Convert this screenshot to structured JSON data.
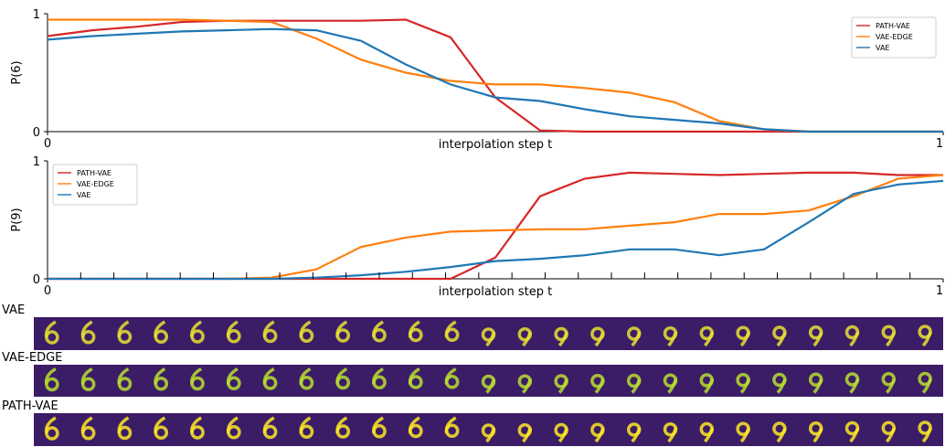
{
  "chart_data": [
    {
      "type": "line",
      "ylabel": "P(6)",
      "xlabel": "interpolation step t",
      "x": [
        0,
        0.05,
        0.1,
        0.15,
        0.2,
        0.25,
        0.3,
        0.35,
        0.4,
        0.45,
        0.5,
        0.55,
        0.6,
        0.65,
        0.7,
        0.75,
        0.8,
        0.85,
        0.9,
        0.95,
        1
      ],
      "xlim": [
        0,
        1
      ],
      "xticks": [
        0,
        1
      ],
      "ylim": [
        0,
        1
      ],
      "yticks": [
        0,
        1
      ],
      "legend": "upper right",
      "series": [
        {
          "name": "PATH-VAE",
          "color": "#d62728",
          "values": [
            0.81,
            0.86,
            0.89,
            0.93,
            0.94,
            0.94,
            0.94,
            0.94,
            0.95,
            0.8,
            0.29,
            0.01,
            0,
            0,
            0,
            0,
            0,
            0,
            0,
            0,
            0
          ]
        },
        {
          "name": "VAE-EDGE",
          "color": "#ff7f0e",
          "values": [
            0.95,
            0.95,
            0.95,
            0.95,
            0.94,
            0.93,
            0.79,
            0.61,
            0.5,
            0.43,
            0.4,
            0.4,
            0.37,
            0.33,
            0.25,
            0.09,
            0.02,
            0,
            0,
            0,
            0
          ]
        },
        {
          "name": "VAE",
          "color": "#1f77b4",
          "values": [
            0.78,
            0.81,
            0.83,
            0.85,
            0.86,
            0.87,
            0.86,
            0.77,
            0.57,
            0.4,
            0.29,
            0.26,
            0.19,
            0.13,
            0.1,
            0.07,
            0.02,
            0,
            0,
            0,
            0
          ]
        }
      ]
    },
    {
      "type": "line",
      "ylabel": "P(9)",
      "xlabel": "interpolation step t",
      "x": [
        0,
        0.05,
        0.1,
        0.15,
        0.2,
        0.25,
        0.3,
        0.35,
        0.4,
        0.45,
        0.5,
        0.55,
        0.6,
        0.65,
        0.7,
        0.75,
        0.8,
        0.85,
        0.9,
        0.95,
        1
      ],
      "xlim": [
        0,
        1
      ],
      "xticks": [
        0,
        1
      ],
      "ylim": [
        0,
        1
      ],
      "yticks": [
        0,
        1
      ],
      "legend": "upper left",
      "series": [
        {
          "name": "PATH-VAE",
          "color": "#d62728",
          "values": [
            0,
            0,
            0,
            0,
            0,
            0,
            0,
            0,
            0,
            0,
            0.18,
            0.7,
            0.85,
            0.9,
            0.89,
            0.88,
            0.89,
            0.9,
            0.9,
            0.88,
            0.88
          ]
        },
        {
          "name": "VAE-EDGE",
          "color": "#ff7f0e",
          "values": [
            0,
            0,
            0,
            0,
            0,
            0.01,
            0.08,
            0.27,
            0.35,
            0.4,
            0.41,
            0.42,
            0.42,
            0.45,
            0.48,
            0.55,
            0.55,
            0.58,
            0.7,
            0.85,
            0.88
          ]
        },
        {
          "name": "VAE",
          "color": "#1f77b4",
          "values": [
            0,
            0,
            0,
            0,
            0,
            0,
            0.01,
            0.03,
            0.06,
            0.1,
            0.15,
            0.17,
            0.2,
            0.25,
            0.25,
            0.2,
            0.25,
            0.48,
            0.72,
            0.8,
            0.83
          ]
        }
      ]
    }
  ],
  "image_strips": [
    {
      "label": "VAE"
    },
    {
      "label": "VAE-EDGE"
    },
    {
      "label": "PATH-VAE"
    }
  ]
}
